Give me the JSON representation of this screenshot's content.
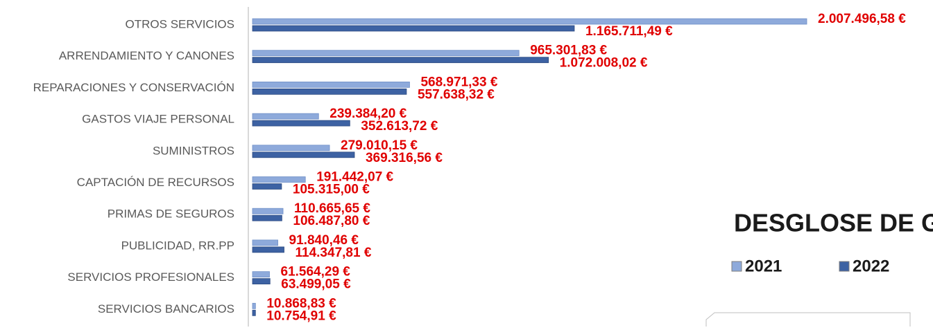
{
  "chart_data": {
    "type": "bar",
    "orientation": "horizontal",
    "title": "DESGLOSE DE G",
    "categories": [
      "OTROS SERVICIOS",
      "ARRENDAMIENTO Y CANONES",
      "REPARACIONES Y CONSERVACIÓN",
      "GASTOS VIAJE PERSONAL",
      "SUMINISTROS",
      "CAPTACIÓN DE RECURSOS",
      "PRIMAS DE SEGUROS",
      "PUBLICIDAD, RR.PP",
      "SERVICIOS PROFESIONALES",
      "SERVICIOS BANCARIOS"
    ],
    "series": [
      {
        "name": "2021",
        "color": "#8eaadb",
        "values": [
          2007496.58,
          965301.83,
          568971.33,
          239384.2,
          279010.15,
          191442.07,
          110665.65,
          91840.46,
          61564.29,
          10868.83
        ],
        "value_labels": [
          "2.007.496,58 €",
          "965.301,83 €",
          "568.971,33 €",
          "239.384,20 €",
          "279.010,15 €",
          "191.442,07 €",
          "110.665,65 €",
          "91.840,46 €",
          "61.564,29 €",
          "10.868,83 €"
        ]
      },
      {
        "name": "2022",
        "color": "#3d62a3",
        "values": [
          1165711.49,
          1072008.02,
          557638.32,
          352613.72,
          369316.56,
          105315.0,
          106487.8,
          114347.81,
          63499.05,
          10754.91
        ],
        "value_labels": [
          "1.165.711,49 €",
          "1.072.008,02 €",
          "557.638,32 €",
          "352.613,72 €",
          "369.316,56 €",
          "105.315,00 €",
          "106.487,80 €",
          "114.347,81 €",
          "63.499,05 €",
          "10.754,91 €"
        ]
      }
    ],
    "label_color": "#e00000"
  }
}
